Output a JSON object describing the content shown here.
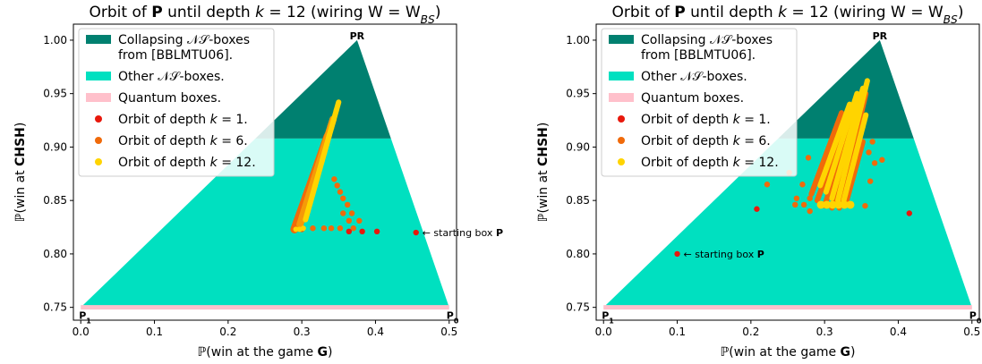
{
  "colors": {
    "collapsing": "#008070",
    "other_ns": "#00e0c0",
    "quantum": "#ffc0cb",
    "depth1": "#e8180c",
    "depth6": "#f06a0a",
    "depth12": "#ffd400",
    "axis": "#000000"
  },
  "chart_data": [
    {
      "type": "scatter",
      "title_prefix": "Orbit of ",
      "title_bold": "P",
      "title_suffix": " until depth k = 12 (wiring W = W_BS)",
      "xlabel_prefix": "ℙ(win at the game ",
      "xlabel_bold": "G",
      "xlabel_suffix": ")",
      "ylabel_prefix": "ℙ(win at ",
      "ylabel_bold": "CHSH",
      "ylabel_suffix": ")",
      "xlim": [
        -0.01,
        0.51
      ],
      "ylim": [
        0.738,
        1.015
      ],
      "xticks": [
        "0.0",
        "0.1",
        "0.2",
        "0.3",
        "0.4",
        "0.5"
      ],
      "yticks": [
        "0.75",
        "0.80",
        "0.85",
        "0.90",
        "0.95",
        "1.00"
      ],
      "grid": false,
      "legend_position": "top-left",
      "legend": [
        {
          "label": "Collapsing 𝒩𝒮-boxes",
          "label2": "from [BBLMTU06].",
          "kind": "patch",
          "color_key": "collapsing"
        },
        {
          "label": "Other 𝒩𝒮-boxes.",
          "kind": "patch",
          "color_key": "other_ns"
        },
        {
          "label": "Quantum boxes.",
          "kind": "patch",
          "color_key": "quantum"
        },
        {
          "label": "Orbit of depth k = 1.",
          "kind": "marker",
          "color_key": "depth1"
        },
        {
          "label": "Orbit of depth k = 6.",
          "kind": "marker",
          "color_key": "depth6"
        },
        {
          "label": "Orbit of depth k = 12.",
          "kind": "marker",
          "color_key": "depth12"
        }
      ],
      "regions": {
        "triangle": [
          [
            0.0,
            0.75
          ],
          [
            0.375,
            1.0
          ],
          [
            0.5,
            0.75
          ]
        ],
        "collapsing_threshold_y": 0.908,
        "quantum_line_y": 0.75
      },
      "corner_labels": {
        "pr": "PR",
        "p1": "P₁",
        "p0": "P₀"
      },
      "pr_point": [
        0.375,
        1.0
      ],
      "p1_point": [
        0.0,
        0.75
      ],
      "p0_point": [
        0.5,
        0.75
      ],
      "starting_box": {
        "x": 0.455,
        "y": 0.82,
        "label_prefix": "← starting box ",
        "label_bold": "P"
      },
      "points_depth1": [
        [
          0.455,
          0.82
        ],
        [
          0.402,
          0.821
        ],
        [
          0.382,
          0.821
        ],
        [
          0.364,
          0.821
        ]
      ],
      "points_depth6": [
        [
          0.378,
          0.831
        ],
        [
          0.368,
          0.838
        ],
        [
          0.362,
          0.846
        ],
        [
          0.356,
          0.852
        ],
        [
          0.352,
          0.858
        ],
        [
          0.348,
          0.864
        ],
        [
          0.344,
          0.87
        ],
        [
          0.37,
          0.824
        ],
        [
          0.352,
          0.824
        ],
        [
          0.34,
          0.824
        ],
        [
          0.33,
          0.824
        ],
        [
          0.315,
          0.824
        ],
        [
          0.3,
          0.823
        ],
        [
          0.29,
          0.823
        ],
        [
          0.364,
          0.831
        ],
        [
          0.356,
          0.838
        ]
      ],
      "streak_depth6": {
        "from": [
          0.29,
          0.823
        ],
        "to": [
          0.335,
          0.91
        ]
      },
      "streak_depth12": {
        "from": [
          0.305,
          0.832
        ],
        "to": [
          0.35,
          0.942
        ]
      }
    },
    {
      "type": "scatter",
      "title_prefix": "Orbit of ",
      "title_bold": "P",
      "title_suffix": " until depth k = 12 (wiring W = W_BS)",
      "xlabel_prefix": "ℙ(win at the game ",
      "xlabel_bold": "G",
      "xlabel_suffix": ")",
      "ylabel_prefix": "ℙ(win at ",
      "ylabel_bold": "CHSH",
      "ylabel_suffix": ")",
      "xlim": [
        -0.01,
        0.51
      ],
      "ylim": [
        0.738,
        1.015
      ],
      "xticks": [
        "0.0",
        "0.1",
        "0.2",
        "0.3",
        "0.4",
        "0.5"
      ],
      "yticks": [
        "0.75",
        "0.80",
        "0.85",
        "0.90",
        "0.95",
        "1.00"
      ],
      "grid": false,
      "legend_position": "top-left",
      "legend": [
        {
          "label": "Collapsing 𝒩𝒮-boxes",
          "label2": "from [BBLMTU06].",
          "kind": "patch",
          "color_key": "collapsing"
        },
        {
          "label": "Other 𝒩𝒮-boxes.",
          "kind": "patch",
          "color_key": "other_ns"
        },
        {
          "label": "Quantum boxes.",
          "kind": "patch",
          "color_key": "quantum"
        },
        {
          "label": "Orbit of depth k = 1.",
          "kind": "marker",
          "color_key": "depth1"
        },
        {
          "label": "Orbit of depth k = 6.",
          "kind": "marker",
          "color_key": "depth6"
        },
        {
          "label": "Orbit of depth k = 12.",
          "kind": "marker",
          "color_key": "depth12"
        }
      ],
      "regions": {
        "triangle": [
          [
            0.0,
            0.75
          ],
          [
            0.375,
            1.0
          ],
          [
            0.5,
            0.75
          ]
        ],
        "collapsing_threshold_y": 0.908,
        "quantum_line_y": 0.75
      },
      "corner_labels": {
        "pr": "PR",
        "p1": "P₁",
        "p0": "P₀"
      },
      "pr_point": [
        0.375,
        1.0
      ],
      "p1_point": [
        0.0,
        0.75
      ],
      "p0_point": [
        0.5,
        0.75
      ],
      "starting_box": {
        "x": 0.1,
        "y": 0.8,
        "label_prefix": "← starting box ",
        "label_bold": "P"
      },
      "points_depth1": [
        [
          0.1,
          0.8
        ],
        [
          0.208,
          0.842
        ],
        [
          0.415,
          0.838
        ]
      ],
      "points_depth6": [
        [
          0.222,
          0.865
        ],
        [
          0.252,
          0.876
        ],
        [
          0.26,
          0.846
        ],
        [
          0.262,
          0.852
        ],
        [
          0.27,
          0.865
        ],
        [
          0.278,
          0.89
        ],
        [
          0.355,
          0.845
        ],
        [
          0.362,
          0.868
        ],
        [
          0.368,
          0.885
        ],
        [
          0.378,
          0.888
        ],
        [
          0.36,
          0.895
        ],
        [
          0.365,
          0.905
        ],
        [
          0.272,
          0.846
        ],
        [
          0.28,
          0.852
        ],
        [
          0.28,
          0.84
        ]
      ],
      "streaks_depth6": [
        {
          "from": [
            0.282,
            0.856
          ],
          "to": [
            0.323,
            0.932
          ]
        },
        {
          "from": [
            0.29,
            0.85
          ],
          "to": [
            0.33,
            0.925
          ]
        },
        {
          "from": [
            0.3,
            0.845
          ],
          "to": [
            0.34,
            0.93
          ]
        },
        {
          "from": [
            0.31,
            0.843
          ],
          "to": [
            0.348,
            0.94
          ]
        },
        {
          "from": [
            0.32,
            0.843
          ],
          "to": [
            0.356,
            0.95
          ]
        },
        {
          "from": [
            0.33,
            0.85
          ],
          "to": [
            0.352,
            0.905
          ]
        }
      ],
      "streaks_depth12": [
        {
          "from": [
            0.294,
            0.864
          ],
          "to": [
            0.334,
            0.94
          ]
        },
        {
          "from": [
            0.302,
            0.858
          ],
          "to": [
            0.344,
            0.95
          ]
        },
        {
          "from": [
            0.31,
            0.852
          ],
          "to": [
            0.352,
            0.955
          ]
        },
        {
          "from": [
            0.318,
            0.85
          ],
          "to": [
            0.358,
            0.962
          ]
        },
        {
          "from": [
            0.326,
            0.85
          ],
          "to": [
            0.356,
            0.93
          ]
        }
      ],
      "blobs_depth12": [
        [
          0.295,
          0.846
        ],
        [
          0.303,
          0.846
        ],
        [
          0.311,
          0.846
        ],
        [
          0.319,
          0.846
        ],
        [
          0.327,
          0.846
        ],
        [
          0.335,
          0.846
        ]
      ]
    }
  ]
}
